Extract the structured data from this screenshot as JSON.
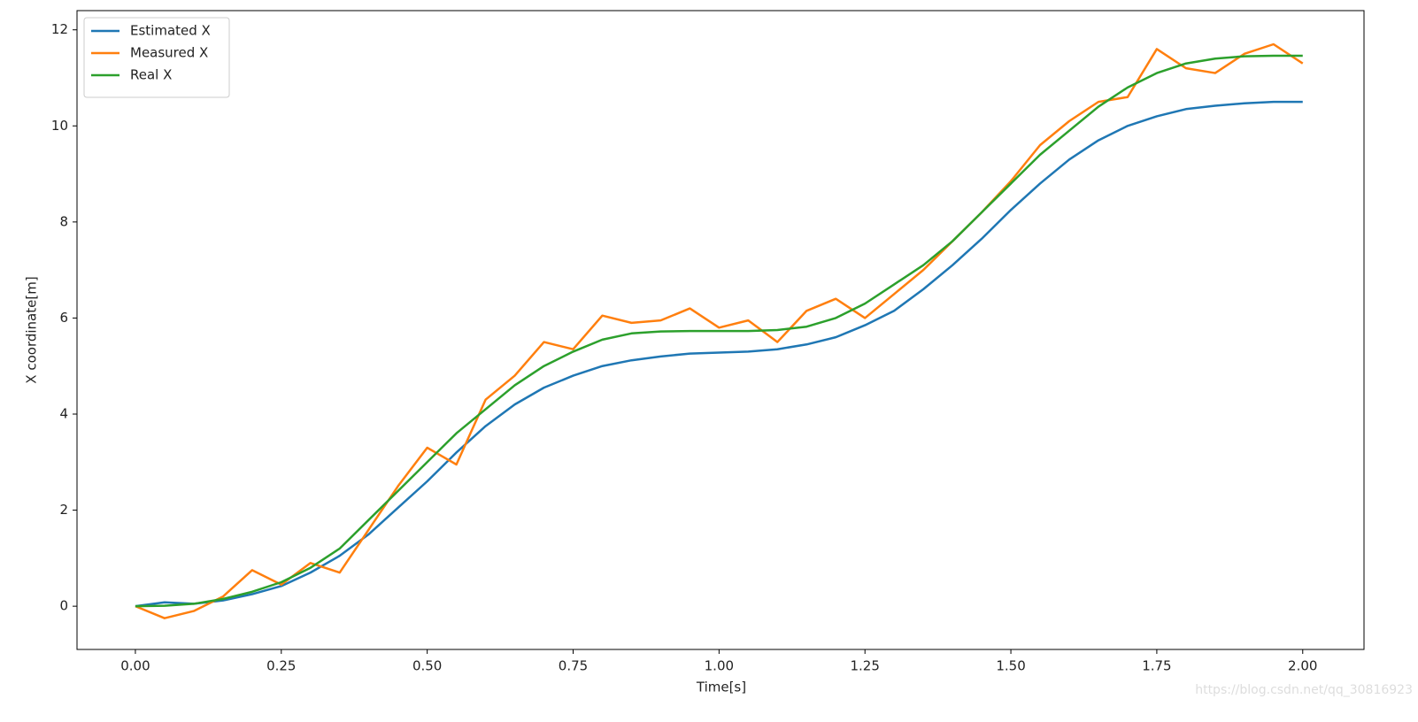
{
  "chart_data": {
    "type": "line",
    "xlabel": "Time[s]",
    "ylabel": "X coordinate[m]",
    "x": [
      0,
      0.05,
      0.1,
      0.15,
      0.2,
      0.25,
      0.3,
      0.35,
      0.4,
      0.45,
      0.5,
      0.55,
      0.6,
      0.65,
      0.7,
      0.75,
      0.8,
      0.85,
      0.9,
      0.95,
      1.0,
      1.05,
      1.1,
      1.15,
      1.2,
      1.25,
      1.3,
      1.35,
      1.4,
      1.45,
      1.5,
      1.55,
      1.6,
      1.65,
      1.7,
      1.75,
      1.8,
      1.85,
      1.9,
      1.95,
      2.0
    ],
    "series": [
      {
        "name": "Estimated X",
        "color": "#1f77b4",
        "values": [
          0,
          0.08,
          0.05,
          0.12,
          0.25,
          0.42,
          0.7,
          1.05,
          1.5,
          2.05,
          2.6,
          3.2,
          3.75,
          4.2,
          4.55,
          4.8,
          5.0,
          5.12,
          5.2,
          5.26,
          5.28,
          5.3,
          5.35,
          5.45,
          5.6,
          5.85,
          6.15,
          6.6,
          7.1,
          7.65,
          8.25,
          8.8,
          9.3,
          9.7,
          10.0,
          10.2,
          10.35,
          10.42,
          10.47,
          10.5,
          10.5
        ]
      },
      {
        "name": "Measured X",
        "color": "#ff7f0e",
        "values": [
          0,
          -0.25,
          -0.1,
          0.2,
          0.75,
          0.45,
          0.9,
          0.7,
          1.6,
          2.5,
          3.3,
          2.95,
          4.3,
          4.8,
          5.5,
          5.35,
          6.05,
          5.9,
          5.95,
          6.2,
          5.8,
          5.95,
          5.5,
          6.15,
          6.4,
          6.0,
          6.5,
          7.0,
          7.6,
          8.2,
          8.85,
          9.6,
          10.1,
          10.5,
          10.6,
          11.6,
          11.2,
          11.1,
          11.5,
          11.7,
          11.3
        ]
      },
      {
        "name": "Real X",
        "color": "#2ca02c",
        "values": [
          0,
          0.01,
          0.05,
          0.15,
          0.3,
          0.5,
          0.8,
          1.2,
          1.8,
          2.4,
          3.0,
          3.6,
          4.1,
          4.6,
          5.0,
          5.3,
          5.55,
          5.68,
          5.72,
          5.73,
          5.73,
          5.73,
          5.75,
          5.82,
          6.0,
          6.3,
          6.7,
          7.1,
          7.6,
          8.2,
          8.8,
          9.4,
          9.9,
          10.4,
          10.8,
          11.1,
          11.3,
          11.4,
          11.45,
          11.46,
          11.46
        ]
      }
    ],
    "xlim": [
      -0.1,
      2.105
    ],
    "ylim": [
      -0.9,
      12.4
    ],
    "xticks": [
      {
        "value": 0,
        "label": "0.00"
      },
      {
        "value": 0.25,
        "label": "0.25"
      },
      {
        "value": 0.5,
        "label": "0.50"
      },
      {
        "value": 0.75,
        "label": "0.75"
      },
      {
        "value": 1.0,
        "label": "1.00"
      },
      {
        "value": 1.25,
        "label": "1.25"
      },
      {
        "value": 1.5,
        "label": "1.50"
      },
      {
        "value": 1.75,
        "label": "1.75"
      },
      {
        "value": 2.0,
        "label": "2.00"
      }
    ],
    "yticks": [
      0,
      2,
      4,
      6,
      8,
      10,
      12
    ],
    "legend": "upper left",
    "grid": false
  },
  "watermark": "https://blog.csdn.net/qq_30816923"
}
